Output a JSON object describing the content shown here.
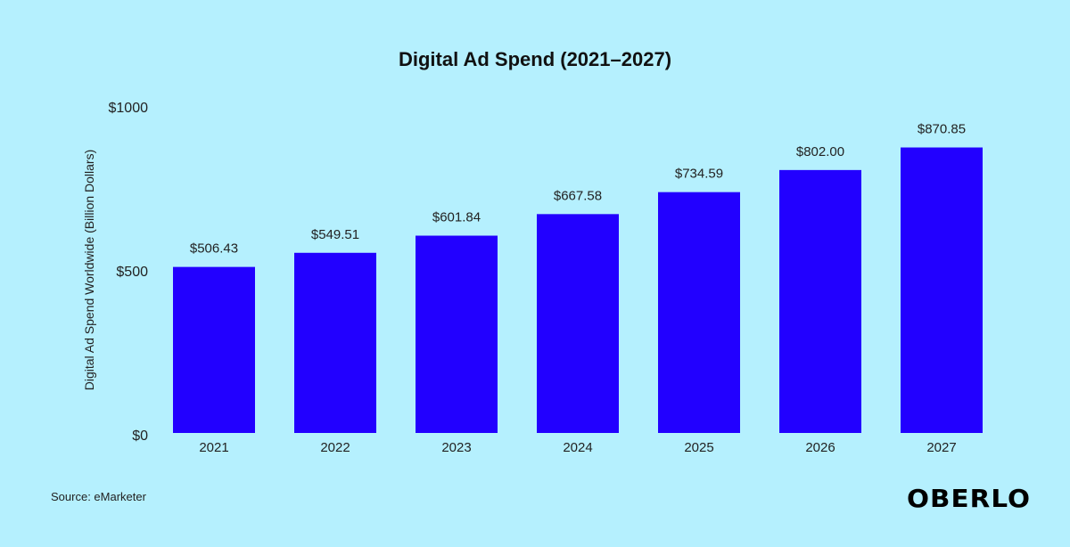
{
  "chart_data": {
    "type": "bar",
    "title": "Digital Ad Spend (2021–2027)",
    "xlabel": "",
    "ylabel": "Digital Ad Spend Worldwide (Billion Dollars)",
    "categories": [
      "2021",
      "2022",
      "2023",
      "2024",
      "2025",
      "2026",
      "2027"
    ],
    "values": [
      506.43,
      549.51,
      601.84,
      667.58,
      734.59,
      802.0,
      870.85
    ],
    "data_labels": [
      "$506.43",
      "$549.51",
      "$601.84",
      "$667.58",
      "$734.59",
      "$802.00",
      "$870.85"
    ],
    "ylim": [
      0,
      1000
    ],
    "yticks": [
      0,
      500,
      1000
    ],
    "ytick_labels": [
      "$0",
      "$500",
      "$1000"
    ],
    "grid": false,
    "bar_color": "#2200ff",
    "background": "#b5f0fe"
  },
  "footer": {
    "source": "Source: eMarketer",
    "logo": "OBERLO"
  }
}
